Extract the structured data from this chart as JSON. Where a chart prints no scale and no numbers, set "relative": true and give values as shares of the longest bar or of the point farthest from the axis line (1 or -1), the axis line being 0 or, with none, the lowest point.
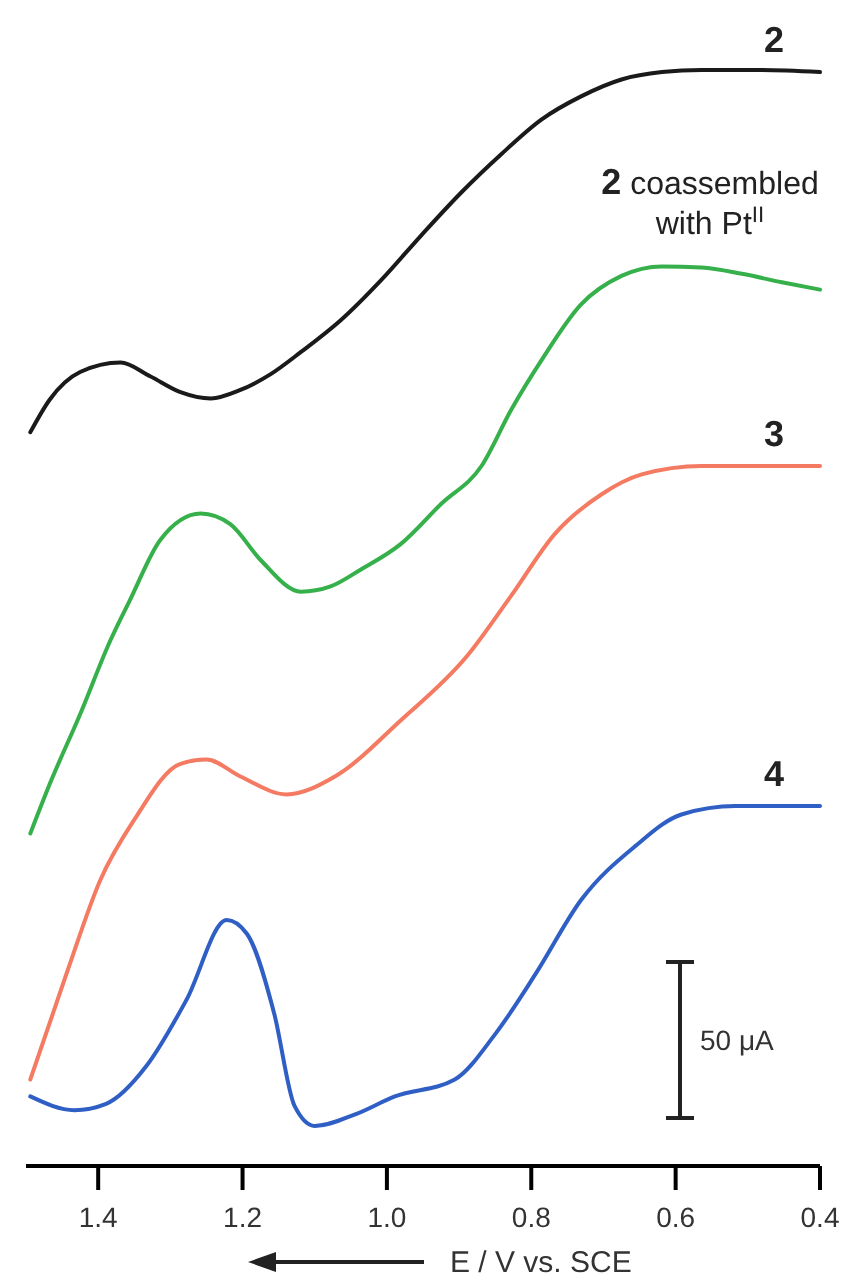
{
  "chart_data": {
    "type": "line",
    "relative": true,
    "xlabel": "E / V vs. SCE",
    "xlim": [
      1.5,
      0.4
    ],
    "xticks": [
      {
        "value": 1.4,
        "label": "1.4"
      },
      {
        "value": 1.2,
        "label": "1.2"
      },
      {
        "value": 1.0,
        "label": "1.0"
      },
      {
        "value": 0.8,
        "label": "0.8"
      },
      {
        "value": 0.6,
        "label": "0.6"
      },
      {
        "value": 0.4,
        "label": "0.4"
      }
    ],
    "legend": false,
    "marker": "none",
    "annotations": [
      "50 μA"
    ],
    "series": [
      {
        "name": "2",
        "color": "#1a1a1a",
        "x": [
          1.494,
          1.467,
          1.425,
          1.369,
          1.328,
          1.286,
          1.244,
          1.203,
          1.161,
          1.119,
          1.064,
          1.008,
          0.953,
          0.897,
          0.842,
          0.786,
          0.731,
          0.675,
          0.619,
          0.564,
          0.481,
          0.4
        ],
        "values": [
          0.657,
          0.688,
          0.714,
          0.723,
          0.71,
          0.695,
          0.689,
          0.697,
          0.712,
          0.733,
          0.763,
          0.801,
          0.843,
          0.884,
          0.92,
          0.953,
          0.975,
          0.991,
          0.998,
          1.0,
          1.0,
          0.998
        ]
      },
      {
        "name": "2 coassembled with Pt$^{II}$",
        "color": "#35b04a",
        "x": [
          1.494,
          1.467,
          1.425,
          1.383,
          1.356,
          1.314,
          1.258,
          1.217,
          1.175,
          1.119,
          1.078,
          1.036,
          0.981,
          0.925,
          0.869,
          0.828,
          0.786,
          0.731,
          0.675,
          0.619,
          0.564,
          0.508,
          0.453,
          0.4
        ],
        "values": [
          0.277,
          0.324,
          0.39,
          0.46,
          0.498,
          0.555,
          0.58,
          0.57,
          0.536,
          0.506,
          0.511,
          0.527,
          0.551,
          0.589,
          0.625,
          0.678,
          0.725,
          0.778,
          0.805,
          0.814,
          0.813,
          0.807,
          0.799,
          0.792
        ]
      },
      {
        "name": "3",
        "color": "#f47a62",
        "x": [
          1.494,
          1.444,
          1.397,
          1.35,
          1.286,
          1.25,
          1.203,
          1.139,
          1.072,
          0.981,
          0.889,
          0.828,
          0.767,
          0.703,
          0.647,
          0.564,
          0.481,
          0.4
        ],
        "values": [
          0.044,
          0.144,
          0.233,
          0.29,
          0.343,
          0.347,
          0.331,
          0.314,
          0.331,
          0.384,
          0.445,
          0.502,
          0.561,
          0.598,
          0.617,
          0.625,
          0.625,
          0.625
        ]
      },
      {
        "name": "4",
        "color": "#2f5fc4",
        "x": [
          1.494,
          1.433,
          1.389,
          1.333,
          1.278,
          1.222,
          1.194,
          1.156,
          1.128,
          1.1,
          1.044,
          0.989,
          0.906,
          0.85,
          0.794,
          0.731,
          0.656,
          0.592,
          0.517,
          0.4
        ],
        "values": [
          0.028,
          0.015,
          0.021,
          0.057,
          0.119,
          0.195,
          0.182,
          0.106,
          0.019,
          0.0,
          0.011,
          0.028,
          0.044,
          0.087,
          0.144,
          0.214,
          0.265,
          0.295,
          0.303,
          0.303
        ]
      }
    ]
  }
}
